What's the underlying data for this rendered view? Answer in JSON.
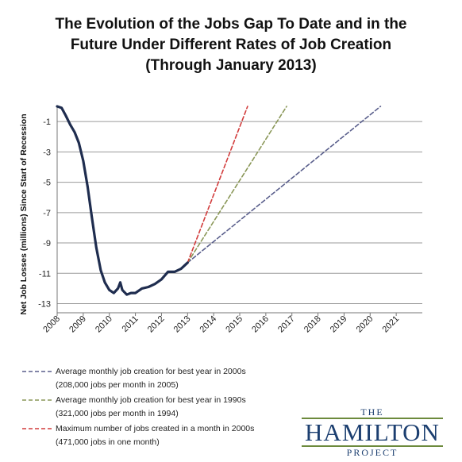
{
  "title": {
    "line1": "The Evolution of the Jobs Gap To Date and in the",
    "line2": "Future Under Different Rates of Job Creation",
    "line3": "(Through January 2013)"
  },
  "chart_data": {
    "type": "line",
    "ylabel": "Net Job Losses (millions) Since Start of Recession",
    "xlabel": "",
    "ylim": [
      -13.6,
      0
    ],
    "yticks": [
      -1,
      -3,
      -5,
      -7,
      -9,
      -11,
      -13
    ],
    "xlim": [
      2008,
      2022
    ],
    "xticks": [
      "2008",
      "2009",
      "2010",
      "2011",
      "2012",
      "2013",
      "2014",
      "2015",
      "2016",
      "2017",
      "2018",
      "2019",
      "2020",
      "2021"
    ],
    "grid": "horizontal",
    "series": [
      {
        "name": "",
        "style": "solid",
        "color": "#1f2d4f",
        "x": [
          2008.0,
          2008.17,
          2008.33,
          2008.5,
          2008.67,
          2008.83,
          2009.0,
          2009.17,
          2009.33,
          2009.5,
          2009.67,
          2009.83,
          2010.0,
          2010.17,
          2010.33,
          2010.42,
          2010.5,
          2010.67,
          2010.83,
          2011.0,
          2011.25,
          2011.5,
          2011.75,
          2012.0,
          2012.25,
          2012.5,
          2012.75,
          2013.0
        ],
        "y": [
          0.0,
          -0.1,
          -0.6,
          -1.2,
          -1.7,
          -2.4,
          -3.6,
          -5.3,
          -7.3,
          -9.3,
          -10.8,
          -11.6,
          -12.1,
          -12.3,
          -12.0,
          -11.6,
          -12.1,
          -12.4,
          -12.3,
          -12.3,
          -12.0,
          -11.9,
          -11.7,
          -11.4,
          -10.9,
          -10.9,
          -10.7,
          -10.3
        ]
      },
      {
        "name": "Average monthly job creation for best year in 2000s",
        "style": "dashed",
        "color": "#5a5f8c",
        "x": [
          2013.0,
          2020.4
        ],
        "y": [
          -10.3,
          0.0
        ]
      },
      {
        "name": "Average monthly job creation for best year in 1990s",
        "style": "dashed",
        "color": "#8a9758",
        "x": [
          2013.0,
          2016.8
        ],
        "y": [
          -10.3,
          0.0
        ]
      },
      {
        "name": "Maximum number of jobs created in a month in 2000s",
        "style": "dashed",
        "color": "#d23c3c",
        "x": [
          2013.0,
          2015.3
        ],
        "y": [
          -10.3,
          0.0
        ]
      }
    ]
  },
  "legend": [
    {
      "line1": "Average monthly job creation for best year in 2000s",
      "line2": "(208,000 jobs per month in 2005)",
      "color": "#5a5f8c"
    },
    {
      "line1": "Average monthly job creation for best year in 1990s",
      "line2": "(321,000 jobs per month in 1994)",
      "color": "#8a9758"
    },
    {
      "line1": "Maximum number of jobs created in a month in 2000s",
      "line2": "(471,000 jobs in one month)",
      "color": "#d23c3c"
    }
  ],
  "logo": {
    "top": "THE",
    "main": "HAMILTON",
    "bottom": "PROJECT"
  }
}
